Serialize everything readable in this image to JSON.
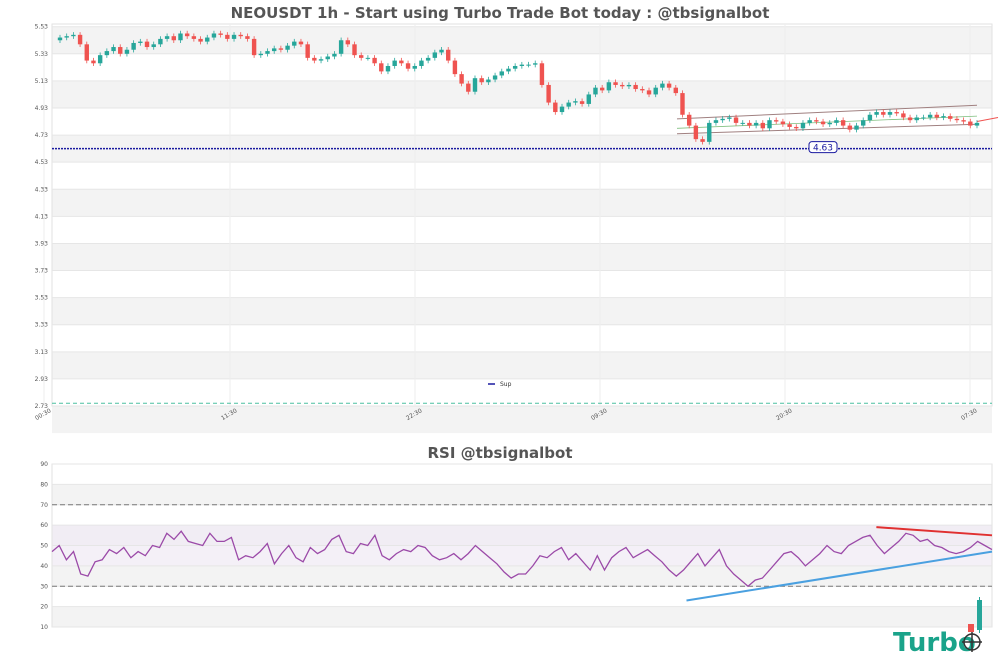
{
  "chart_data": [
    {
      "type": "candlestick",
      "title": "NEOUSDT 1h - Start using Turbo Trade Bot today : @tbsignalbot",
      "xlabel": "",
      "ylabel": "",
      "ylim": [
        2.73,
        5.55
      ],
      "y_ticks": [
        "5.53",
        "5.33",
        "5.13",
        "4.93",
        "4.73",
        "4.53",
        "4.33",
        "4.13",
        "3.93",
        "3.73",
        "3.53",
        "3.33",
        "3.13",
        "2.93",
        "2.73"
      ],
      "x_ticks": [
        "00:30",
        "11:30",
        "22:30",
        "09:30",
        "20:30",
        "07:30"
      ],
      "grid": true,
      "support_level": 4.63,
      "support_label": "4.63",
      "lower_dashed_level": 2.75,
      "legend": {
        "entries": [
          "Sup"
        ],
        "placement": "bottom-center"
      },
      "colors": {
        "up": "#26a69a",
        "down": "#ef5350",
        "support": "#1a1aa0",
        "channel": "#a08080"
      },
      "closes": [
        5.45,
        5.46,
        5.47,
        5.4,
        5.28,
        5.26,
        5.32,
        5.35,
        5.38,
        5.33,
        5.36,
        5.41,
        5.42,
        5.38,
        5.4,
        5.44,
        5.46,
        5.43,
        5.48,
        5.46,
        5.44,
        5.42,
        5.45,
        5.48,
        5.47,
        5.44,
        5.47,
        5.46,
        5.44,
        5.32,
        5.33,
        5.35,
        5.37,
        5.36,
        5.39,
        5.42,
        5.4,
        5.3,
        5.28,
        5.29,
        5.31,
        5.33,
        5.43,
        5.4,
        5.32,
        5.3,
        5.3,
        5.26,
        5.2,
        5.24,
        5.28,
        5.26,
        5.22,
        5.24,
        5.28,
        5.3,
        5.34,
        5.36,
        5.28,
        5.18,
        5.11,
        5.05,
        5.15,
        5.12,
        5.14,
        5.17,
        5.2,
        5.22,
        5.24,
        5.25,
        5.25,
        5.26,
        5.1,
        4.97,
        4.9,
        4.94,
        4.97,
        4.98,
        4.96,
        5.03,
        5.08,
        5.06,
        5.12,
        5.1,
        5.09,
        5.1,
        5.07,
        5.06,
        5.03,
        5.08,
        5.11,
        5.08,
        5.04,
        4.88,
        4.8,
        4.7,
        4.68,
        4.82,
        4.84,
        4.85,
        4.86,
        4.82,
        4.82,
        4.8,
        4.82,
        4.78,
        4.84,
        4.83,
        4.81,
        4.79,
        4.78,
        4.82,
        4.84,
        4.83,
        4.81,
        4.82,
        4.84,
        4.8,
        4.77,
        4.8,
        4.84,
        4.88,
        4.9,
        4.88,
        4.9,
        4.89,
        4.86,
        4.84,
        4.86,
        4.86,
        4.88,
        4.86,
        4.87,
        4.85,
        4.84,
        4.83,
        4.8,
        4.82
      ]
    },
    {
      "type": "line",
      "title": "RSI @tbsignalbot",
      "xlabel": "",
      "ylabel": "",
      "ylim": [
        10,
        90
      ],
      "y_ticks": [
        "90",
        "80",
        "70",
        "60",
        "50",
        "40",
        "30",
        "20",
        "10"
      ],
      "reference_levels": [
        70,
        30
      ],
      "grid": true,
      "series": [
        {
          "name": "",
          "color": "#9b4aa8",
          "values": [
            47,
            50,
            43,
            47,
            36,
            35,
            42,
            43,
            48,
            46,
            49,
            44,
            47,
            45,
            50,
            49,
            56,
            53,
            57,
            52,
            51,
            50,
            56,
            52,
            52,
            54,
            43,
            45,
            44,
            47,
            51,
            41,
            46,
            50,
            44,
            42,
            49,
            46,
            48,
            53,
            55,
            47,
            46,
            51,
            50,
            55,
            45,
            43,
            46,
            48,
            47,
            50,
            49,
            45,
            43,
            44,
            46,
            43,
            46,
            50,
            47,
            44,
            41,
            37,
            34,
            36,
            36,
            40,
            45,
            44,
            47,
            49,
            43,
            46,
            42,
            38,
            45,
            38,
            44,
            47,
            49,
            44,
            46,
            48,
            45,
            42,
            38,
            35,
            38,
            42,
            46,
            40,
            44,
            48,
            40,
            36,
            33,
            30,
            33,
            34,
            38,
            42,
            46,
            47,
            44,
            40,
            43,
            46,
            50,
            47,
            46,
            50,
            52,
            54,
            55,
            50,
            46,
            49,
            52,
            56,
            55,
            52,
            53,
            50,
            49,
            47,
            46,
            47,
            49,
            52,
            50,
            48
          ]
        }
      ],
      "trendlines": [
        {
          "color": "#e03030",
          "from": [
            0.877,
            59
          ],
          "to": [
            1.0,
            55
          ]
        },
        {
          "color": "#4aa0e0",
          "from": [
            0.675,
            23
          ],
          "to": [
            1.0,
            47
          ]
        }
      ]
    }
  ],
  "logo": {
    "text": "Turbo"
  }
}
